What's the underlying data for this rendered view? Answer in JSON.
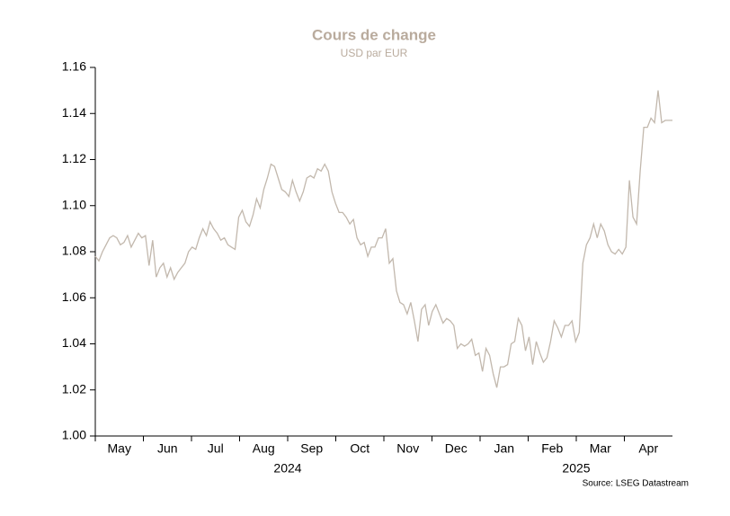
{
  "chart_data": {
    "type": "line",
    "title": "Cours de change",
    "subtitle": "USD par EUR",
    "source": "Source: LSEG Datastream",
    "months": [
      "May",
      "Jun",
      "Jul",
      "Aug",
      "Sep",
      "Oct",
      "Nov",
      "Dec",
      "Jan",
      "Feb",
      "Mar",
      "Apr"
    ],
    "years": [
      "2024",
      "2025"
    ],
    "ylim": [
      1.0,
      1.16
    ],
    "yticks": [
      {
        "value": 1.0,
        "label": "1.00"
      },
      {
        "value": 1.02,
        "label": "1.02"
      },
      {
        "value": 1.04,
        "label": "1.04"
      },
      {
        "value": 1.06,
        "label": "1.06"
      },
      {
        "value": 1.08,
        "label": "1.08"
      },
      {
        "value": 1.1,
        "label": "1.10"
      },
      {
        "value": 1.12,
        "label": "1.12"
      },
      {
        "value": 1.14,
        "label": "1.14"
      },
      {
        "value": 1.16,
        "label": "1.16"
      }
    ],
    "series": [
      {
        "name": "USD par EUR",
        "color": "#c2b8ad",
        "values": [
          1.078,
          1.076,
          1.08,
          1.083,
          1.086,
          1.087,
          1.086,
          1.083,
          1.084,
          1.087,
          1.082,
          1.085,
          1.088,
          1.086,
          1.087,
          1.074,
          1.085,
          1.069,
          1.073,
          1.075,
          1.069,
          1.073,
          1.068,
          1.071,
          1.073,
          1.075,
          1.08,
          1.082,
          1.081,
          1.086,
          1.09,
          1.087,
          1.093,
          1.09,
          1.088,
          1.085,
          1.086,
          1.083,
          1.082,
          1.081,
          1.095,
          1.098,
          1.093,
          1.091,
          1.096,
          1.103,
          1.099,
          1.107,
          1.112,
          1.118,
          1.117,
          1.112,
          1.107,
          1.106,
          1.104,
          1.111,
          1.106,
          1.102,
          1.106,
          1.112,
          1.113,
          1.112,
          1.116,
          1.115,
          1.118,
          1.115,
          1.106,
          1.101,
          1.097,
          1.097,
          1.095,
          1.092,
          1.094,
          1.086,
          1.083,
          1.084,
          1.078,
          1.082,
          1.082,
          1.086,
          1.086,
          1.09,
          1.075,
          1.077,
          1.063,
          1.058,
          1.057,
          1.053,
          1.058,
          1.05,
          1.041,
          1.055,
          1.057,
          1.048,
          1.054,
          1.057,
          1.053,
          1.049,
          1.051,
          1.05,
          1.048,
          1.038,
          1.04,
          1.039,
          1.04,
          1.042,
          1.035,
          1.036,
          1.028,
          1.038,
          1.035,
          1.027,
          1.021,
          1.03,
          1.03,
          1.031,
          1.04,
          1.041,
          1.051,
          1.048,
          1.037,
          1.043,
          1.031,
          1.041,
          1.036,
          1.032,
          1.034,
          1.041,
          1.05,
          1.047,
          1.043,
          1.048,
          1.048,
          1.05,
          1.041,
          1.045,
          1.075,
          1.083,
          1.086,
          1.092,
          1.086,
          1.092,
          1.089,
          1.083,
          1.08,
          1.079,
          1.081,
          1.079,
          1.082,
          1.111,
          1.095,
          1.092,
          1.115,
          1.134,
          1.134,
          1.138,
          1.136,
          1.15,
          1.136,
          1.137,
          1.137,
          1.137
        ]
      }
    ]
  }
}
